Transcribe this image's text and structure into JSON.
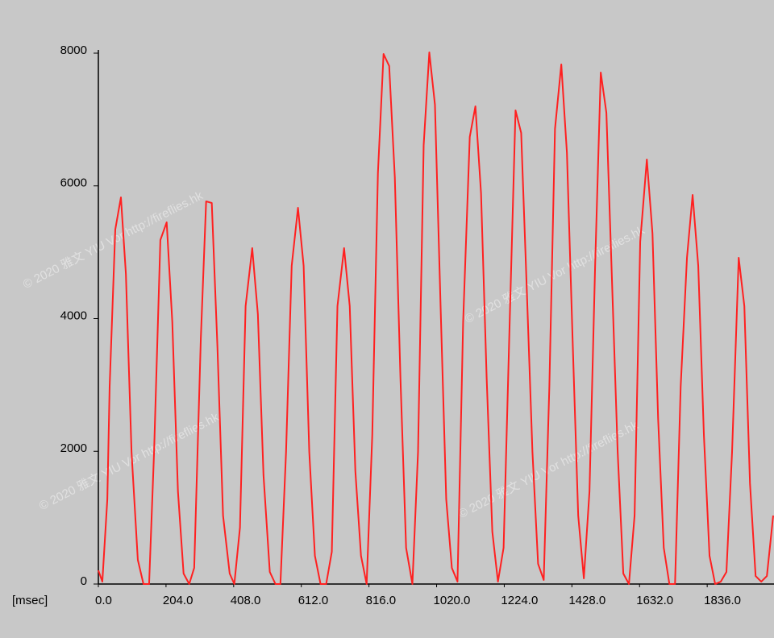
{
  "chart_data": {
    "type": "line",
    "x_label": "[msec]",
    "watermark": "© 2020 雅文 YIU Vor http://fireflies.hk",
    "x": [
      0,
      12,
      27,
      34,
      51,
      68,
      83,
      100,
      119,
      136,
      153,
      168,
      187,
      206,
      223,
      240,
      257,
      274,
      289,
      309,
      325,
      342,
      359,
      376,
      396,
      410,
      427,
      444,
      464,
      481,
      498,
      517,
      534,
      549,
      566,
      583,
      602,
      619,
      636,
      653,
      670,
      687,
      704,
      721,
      741,
      758,
      775,
      792,
      809,
      826,
      843,
      860,
      877,
      894,
      911,
      928,
      947,
      964,
      981,
      998,
      1015,
      1032,
      1049,
      1066,
      1083,
      1100,
      1120,
      1137,
      1154,
      1171,
      1188,
      1205,
      1222,
      1239,
      1258,
      1275,
      1292,
      1309,
      1326,
      1343,
      1360,
      1377,
      1396,
      1413,
      1430,
      1447,
      1464,
      1481,
      1498,
      1515,
      1532,
      1549,
      1566,
      1583,
      1600,
      1617,
      1634,
      1654,
      1671,
      1688,
      1705,
      1722,
      1739,
      1756,
      1775,
      1792,
      1809,
      1826,
      1843,
      1860,
      1877,
      1894,
      1911,
      1931,
      1948,
      1965,
      1982,
      1999,
      2016,
      2035
    ],
    "series": [
      {
        "color": "#ff2020",
        "values": [
          206,
          36,
          1275,
          2974,
          5342,
          5827,
          4674,
          1992,
          364,
          0,
          0,
          1992,
          5184,
          5451,
          3946,
          1396,
          158,
          0,
          243,
          3703,
          5767,
          5742,
          3581,
          1032,
          158,
          0,
          850,
          4188,
          5062,
          4067,
          1639,
          182,
          0,
          0,
          1992,
          4795,
          5669,
          4795,
          1992,
          425,
          0,
          0,
          486,
          4188,
          5062,
          4188,
          1700,
          425,
          0,
          2246,
          6191,
          7988,
          7806,
          6131,
          3096,
          546,
          0,
          1992,
          6616,
          8012,
          7223,
          4188,
          1275,
          243,
          36,
          3946,
          6738,
          7199,
          5888,
          3096,
          789,
          36,
          546,
          3703,
          7138,
          6798,
          4431,
          1992,
          304,
          61,
          2974,
          6859,
          7830,
          6495,
          3703,
          1032,
          85,
          1396,
          4795,
          7709,
          7102,
          4553,
          1992,
          158,
          0,
          1032,
          5160,
          6398,
          5281,
          2489,
          546,
          0,
          0,
          2974,
          4917,
          5864,
          4795,
          2246,
          425,
          0,
          36,
          182,
          1992,
          4917,
          4188,
          1518,
          121,
          36,
          121,
          1032
        ]
      }
    ],
    "xlim": [
      0,
      2035
    ],
    "ylim": [
      0,
      8000
    ],
    "xticks": [
      {
        "value": 0,
        "label": "0.0"
      },
      {
        "value": 204,
        "label": "204.0"
      },
      {
        "value": 408,
        "label": "408.0"
      },
      {
        "value": 612,
        "label": "612.0"
      },
      {
        "value": 816,
        "label": "816.0"
      },
      {
        "value": 1020,
        "label": "1020.0"
      },
      {
        "value": 1224,
        "label": "1224.0"
      },
      {
        "value": 1428,
        "label": "1428.0"
      },
      {
        "value": 1632,
        "label": "1632.0"
      },
      {
        "value": 1836,
        "label": "1836.0"
      }
    ],
    "yticks": [
      0,
      2000,
      4000,
      6000,
      8000
    ]
  }
}
